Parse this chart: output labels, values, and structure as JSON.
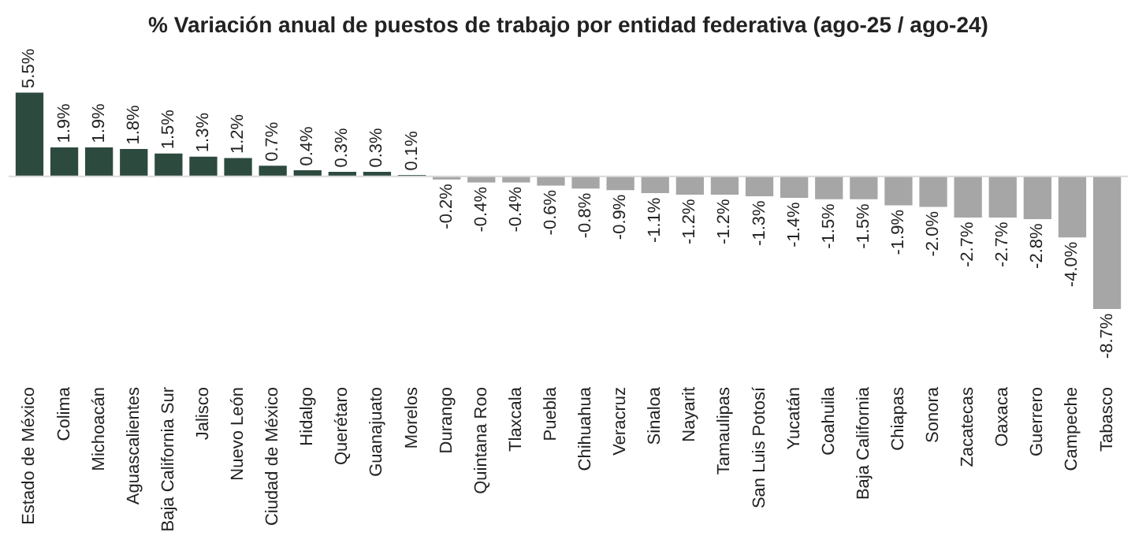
{
  "chart_data": {
    "type": "bar",
    "title": "% Variación anual de puestos de trabajo por entidad federativa (ago-25 / ago-24)",
    "categories": [
      "Estado de México",
      "Colima",
      "Michoacán",
      "Aguascalientes",
      "Baja California Sur",
      "Jalisco",
      "Nuevo León",
      "Ciudad de México",
      "Hidalgo",
      "Querétaro",
      "Guanajuato",
      "Morelos",
      "Durango",
      "Quintana Roo",
      "Tlaxcala",
      "Puebla",
      "Chihuahua",
      "Veracruz",
      "Sinaloa",
      "Nayarit",
      "Tamaulipas",
      "San Luis Potosí",
      "Yucatán",
      "Coahuila",
      "Baja California",
      "Chiapas",
      "Sonora",
      "Zacatecas",
      "Oaxaca",
      "Guerrero",
      "Campeche",
      "Tabasco"
    ],
    "values": [
      5.5,
      1.9,
      1.9,
      1.8,
      1.5,
      1.3,
      1.2,
      0.7,
      0.4,
      0.3,
      0.3,
      0.1,
      -0.2,
      -0.4,
      -0.4,
      -0.6,
      -0.8,
      -0.9,
      -1.1,
      -1.2,
      -1.2,
      -1.3,
      -1.4,
      -1.5,
      -1.5,
      -1.9,
      -2.0,
      -2.7,
      -2.7,
      -2.8,
      -4.0,
      -8.7
    ],
    "value_labels": [
      "5.5%",
      "1.9%",
      "1.9%",
      "1.8%",
      "1.5%",
      "1.3%",
      "1.2%",
      "0.7%",
      "0.4%",
      "0.3%",
      "0.3%",
      "0.1%",
      "-0.2%",
      "-0.4%",
      "-0.4%",
      "-0.6%",
      "-0.8%",
      "-0.9%",
      "-1.1%",
      "-1.2%",
      "-1.2%",
      "-1.3%",
      "-1.4%",
      "-1.5%",
      "-1.5%",
      "-1.9%",
      "-2.0%",
      "-2.7%",
      "-2.7%",
      "-2.8%",
      "-4.0%",
      "-8.7%"
    ],
    "colors": [
      "#2d4a3e",
      "#2d4a3e",
      "#2d4a3e",
      "#2d4a3e",
      "#2d4a3e",
      "#2d4a3e",
      "#2d4a3e",
      "#2d4a3e",
      "#2d4a3e",
      "#2d4a3e",
      "#2d4a3e",
      "#2d4a3e",
      "#a6a6a6",
      "#a6a6a6",
      "#a6a6a6",
      "#a6a6a6",
      "#a6a6a6",
      "#a6a6a6",
      "#a6a6a6",
      "#a6a6a6",
      "#a6a6a6",
      "#a6a6a6",
      "#a6a6a6",
      "#a6a6a6",
      "#a6a6a6",
      "#a6a6a6",
      "#a6a6a6",
      "#a6a6a6",
      "#a6a6a6",
      "#a6a6a6",
      "#a6a6a6",
      "#a6a6a6"
    ],
    "grid": false
  }
}
